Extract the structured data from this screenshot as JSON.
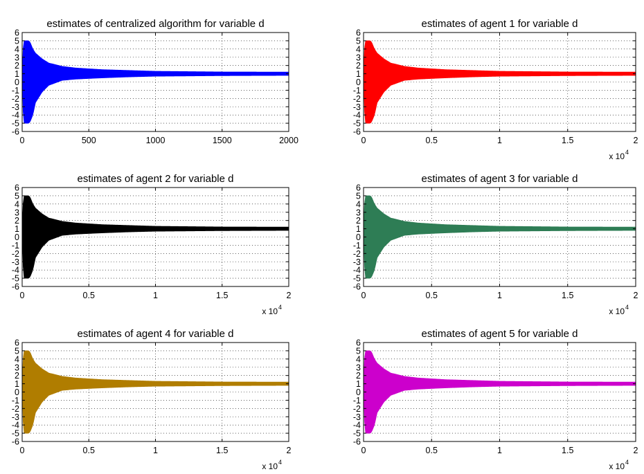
{
  "figure": {
    "background": "#ffffff",
    "grid": true,
    "grid_style": "dotted"
  },
  "chart_data": [
    {
      "type": "area",
      "title": "estimates of centralized algorithm for variable d",
      "color": "#0000ff",
      "xlim": [
        0,
        2000
      ],
      "ylim": [
        -6,
        6
      ],
      "xticks": [
        0,
        500,
        1000,
        1500,
        2000
      ],
      "xtick_labels": [
        "0",
        "500",
        "1000",
        "1500",
        "2000"
      ],
      "yticks": [
        6,
        5,
        4,
        3,
        2,
        1,
        0,
        -1,
        -2,
        -3,
        -4,
        -5,
        -6
      ],
      "ytick_labels": [
        "6",
        "5",
        "4",
        "3",
        "2",
        "1",
        "0",
        "-1",
        "-2",
        "-3",
        "-4",
        "-5",
        "-6"
      ],
      "x_multiplier": "",
      "x_multiplier_exp": "",
      "envelope": {
        "x": [
          0,
          10,
          30,
          50,
          60,
          80,
          100,
          150,
          200,
          300,
          400,
          600,
          800,
          1000,
          1500,
          2000
        ],
        "upper": [
          1,
          5.0,
          5.0,
          5.0,
          4.8,
          4.0,
          3.5,
          2.8,
          2.3,
          1.9,
          1.7,
          1.5,
          1.4,
          1.3,
          1.22,
          1.2
        ],
        "lower": [
          1,
          -5.0,
          -5.0,
          -5.0,
          -4.8,
          -4.0,
          -2.5,
          -1.2,
          -0.4,
          0.2,
          0.35,
          0.5,
          0.62,
          0.7,
          0.77,
          0.8
        ]
      }
    },
    {
      "type": "area",
      "title": "estimates of agent 1 for variable d",
      "color": "#ff0000",
      "xlim": [
        0,
        2
      ],
      "ylim": [
        -6,
        6
      ],
      "xticks": [
        0,
        0.5,
        1,
        1.5,
        2
      ],
      "xtick_labels": [
        "0",
        "0.5",
        "1",
        "1.5",
        "2"
      ],
      "yticks": [
        6,
        5,
        4,
        3,
        2,
        1,
        0,
        -1,
        -2,
        -3,
        -4,
        -5,
        -6
      ],
      "ytick_labels": [
        "6",
        "5",
        "4",
        "3",
        "2",
        "1",
        "0",
        "-1",
        "-2",
        "-3",
        "-4",
        "-5",
        "-6"
      ],
      "x_multiplier": "x 10",
      "x_multiplier_exp": "4",
      "envelope": {
        "x": [
          0,
          0.01,
          0.03,
          0.05,
          0.06,
          0.08,
          0.1,
          0.15,
          0.2,
          0.3,
          0.4,
          0.6,
          0.8,
          1.0,
          1.5,
          2.0
        ],
        "upper": [
          1,
          5.0,
          5.0,
          5.0,
          4.8,
          4.0,
          3.5,
          2.8,
          2.3,
          1.9,
          1.7,
          1.5,
          1.4,
          1.3,
          1.22,
          1.2
        ],
        "lower": [
          1,
          -5.0,
          -5.0,
          -5.0,
          -4.8,
          -4.0,
          -2.5,
          -1.2,
          -0.4,
          0.2,
          0.35,
          0.5,
          0.62,
          0.7,
          0.77,
          0.8
        ]
      }
    },
    {
      "type": "area",
      "title": "estimates of agent 2 for variable d",
      "color": "#000000",
      "xlim": [
        0,
        2
      ],
      "ylim": [
        -6,
        6
      ],
      "xticks": [
        0,
        0.5,
        1,
        1.5,
        2
      ],
      "xtick_labels": [
        "0",
        "0.5",
        "1",
        "1.5",
        "2"
      ],
      "yticks": [
        6,
        5,
        4,
        3,
        2,
        1,
        0,
        -1,
        -2,
        -3,
        -4,
        -5,
        -6
      ],
      "ytick_labels": [
        "6",
        "5",
        "4",
        "3",
        "2",
        "1",
        "0",
        "-1",
        "-2",
        "-3",
        "-4",
        "-5",
        "-6"
      ],
      "x_multiplier": "x 10",
      "x_multiplier_exp": "4",
      "envelope": {
        "x": [
          0,
          0.01,
          0.03,
          0.05,
          0.06,
          0.08,
          0.1,
          0.15,
          0.2,
          0.3,
          0.4,
          0.6,
          0.8,
          1.0,
          1.5,
          2.0
        ],
        "upper": [
          1,
          5.0,
          5.0,
          5.0,
          4.8,
          4.0,
          3.5,
          2.8,
          2.3,
          1.9,
          1.7,
          1.5,
          1.4,
          1.3,
          1.22,
          1.2
        ],
        "lower": [
          1,
          -5.0,
          -5.0,
          -5.0,
          -4.8,
          -4.0,
          -2.5,
          -1.2,
          -0.4,
          0.2,
          0.35,
          0.5,
          0.62,
          0.7,
          0.77,
          0.8
        ]
      }
    },
    {
      "type": "area",
      "title": "estimates of agent 3 for variable d",
      "color": "#2e7d55",
      "xlim": [
        0,
        2
      ],
      "ylim": [
        -6,
        6
      ],
      "xticks": [
        0,
        0.5,
        1,
        1.5,
        2
      ],
      "xtick_labels": [
        "0",
        "0.5",
        "1",
        "1.5",
        "2"
      ],
      "yticks": [
        6,
        5,
        4,
        3,
        2,
        1,
        0,
        -1,
        -2,
        -3,
        -4,
        -5,
        -6
      ],
      "ytick_labels": [
        "6",
        "5",
        "4",
        "3",
        "2",
        "1",
        "0",
        "-1",
        "-2",
        "-3",
        "-4",
        "-5",
        "-6"
      ],
      "x_multiplier": "x 10",
      "x_multiplier_exp": "4",
      "envelope": {
        "x": [
          0,
          0.01,
          0.03,
          0.05,
          0.06,
          0.08,
          0.1,
          0.15,
          0.2,
          0.3,
          0.4,
          0.6,
          0.8,
          1.0,
          1.5,
          2.0
        ],
        "upper": [
          1,
          5.0,
          5.0,
          5.0,
          4.8,
          4.0,
          3.5,
          2.8,
          2.3,
          1.9,
          1.7,
          1.5,
          1.4,
          1.3,
          1.22,
          1.2
        ],
        "lower": [
          1,
          -5.0,
          -5.0,
          -5.0,
          -4.8,
          -4.0,
          -2.5,
          -1.2,
          -0.4,
          0.2,
          0.35,
          0.5,
          0.62,
          0.7,
          0.77,
          0.8
        ]
      }
    },
    {
      "type": "area",
      "title": "estimates of agent 4 for variable d",
      "color": "#b07d00",
      "xlim": [
        0,
        2
      ],
      "ylim": [
        -6,
        6
      ],
      "xticks": [
        0,
        0.5,
        1,
        1.5,
        2
      ],
      "xtick_labels": [
        "0",
        "0.5",
        "1",
        "1.5",
        "2"
      ],
      "yticks": [
        6,
        5,
        4,
        3,
        2,
        1,
        0,
        -1,
        -2,
        -3,
        -4,
        -5,
        -6
      ],
      "ytick_labels": [
        "6",
        "5",
        "4",
        "3",
        "2",
        "1",
        "0",
        "-1",
        "-2",
        "-3",
        "-4",
        "-5",
        "-6"
      ],
      "x_multiplier": "x 10",
      "x_multiplier_exp": "4",
      "envelope": {
        "x": [
          0,
          0.01,
          0.03,
          0.05,
          0.06,
          0.08,
          0.1,
          0.15,
          0.2,
          0.3,
          0.4,
          0.6,
          0.8,
          1.0,
          1.5,
          2.0
        ],
        "upper": [
          1,
          5.0,
          5.0,
          5.0,
          4.8,
          4.0,
          3.5,
          2.8,
          2.3,
          1.9,
          1.7,
          1.5,
          1.4,
          1.3,
          1.22,
          1.2
        ],
        "lower": [
          1,
          -5.0,
          -5.0,
          -5.0,
          -4.8,
          -4.0,
          -2.5,
          -1.2,
          -0.4,
          0.2,
          0.35,
          0.5,
          0.62,
          0.7,
          0.77,
          0.8
        ]
      }
    },
    {
      "type": "area",
      "title": "estimates of agent 5 for variable d",
      "color": "#cc00cc",
      "xlim": [
        0,
        2
      ],
      "ylim": [
        -6,
        6
      ],
      "xticks": [
        0,
        0.5,
        1,
        1.5,
        2
      ],
      "xtick_labels": [
        "0",
        "0.5",
        "1",
        "1.5",
        "2"
      ],
      "yticks": [
        6,
        5,
        4,
        3,
        2,
        1,
        0,
        -1,
        -2,
        -3,
        -4,
        -5,
        -6
      ],
      "ytick_labels": [
        "6",
        "5",
        "4",
        "3",
        "2",
        "1",
        "0",
        "-1",
        "-2",
        "-3",
        "-4",
        "-5",
        "-6"
      ],
      "x_multiplier": "x 10",
      "x_multiplier_exp": "4",
      "envelope": {
        "x": [
          0,
          0.01,
          0.03,
          0.05,
          0.06,
          0.08,
          0.1,
          0.15,
          0.2,
          0.3,
          0.4,
          0.6,
          0.8,
          1.0,
          1.5,
          2.0
        ],
        "upper": [
          1,
          5.0,
          5.0,
          5.0,
          4.8,
          4.0,
          3.5,
          2.8,
          2.3,
          1.9,
          1.7,
          1.5,
          1.4,
          1.3,
          1.22,
          1.2
        ],
        "lower": [
          1,
          -5.0,
          -5.0,
          -5.0,
          -4.8,
          -4.0,
          -2.5,
          -1.2,
          -0.4,
          0.2,
          0.35,
          0.5,
          0.62,
          0.7,
          0.77,
          0.8
        ]
      }
    }
  ]
}
